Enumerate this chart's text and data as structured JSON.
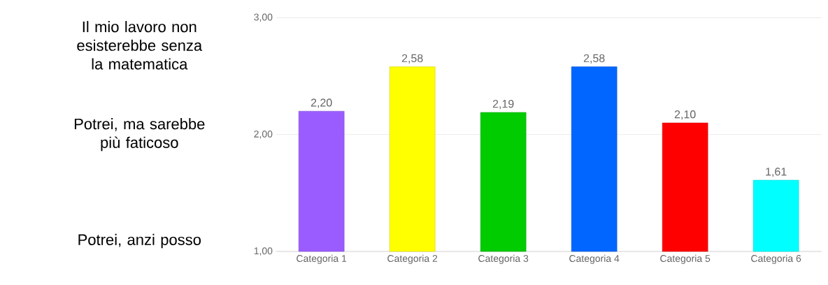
{
  "chart_data": {
    "type": "bar",
    "categories": [
      "Categoria 1",
      "Categoria 2",
      "Categoria 3",
      "Categoria 4",
      "Categoria 5",
      "Categoria 6"
    ],
    "values": [
      2.2,
      2.58,
      2.19,
      2.58,
      2.1,
      1.61
    ],
    "value_labels": [
      "2,20",
      "2,58",
      "2,19",
      "2,58",
      "2,10",
      "1,61"
    ],
    "colors": [
      "#9b5cff",
      "#ffff00",
      "#00cc00",
      "#0066ff",
      "#ff0000",
      "#00ffff"
    ],
    "ylim": [
      1,
      3
    ],
    "yticks": [
      {
        "value": 1,
        "label": "1,00"
      },
      {
        "value": 2,
        "label": "2,00"
      },
      {
        "value": 3,
        "label": "3,00"
      }
    ],
    "annotations": [
      "Il mio lavoro non esisterebbe senza la matematica",
      "Potrei, ma sarebbe più faticoso",
      "Potrei, anzi posso"
    ],
    "grid": "y"
  }
}
